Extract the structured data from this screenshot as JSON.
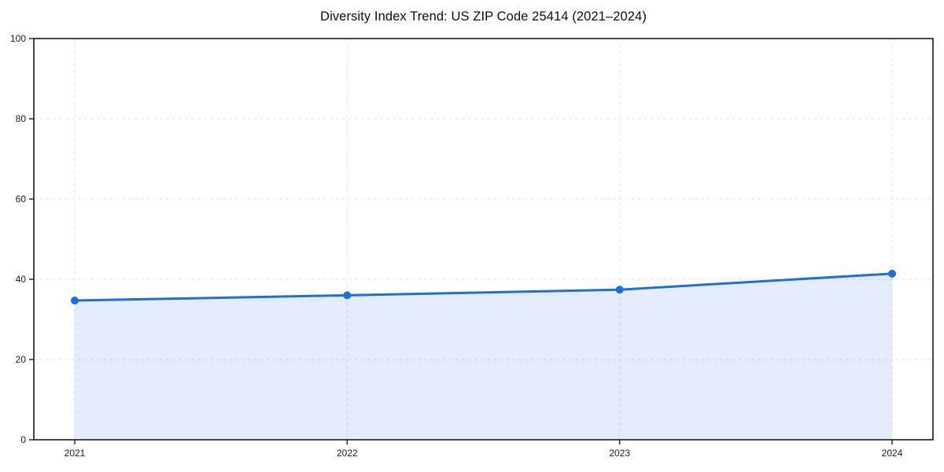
{
  "page": {
    "background_color": "#ffffff"
  },
  "chart_data": {
    "type": "area",
    "title": "Diversity Index Trend: US ZIP Code 25414 (2021–2024)",
    "x": [
      "2021",
      "2022",
      "2023",
      "2024"
    ],
    "series": [
      {
        "name": "Diversity Index",
        "values": [
          34.7,
          36.0,
          37.4,
          41.4
        ]
      }
    ],
    "xlabel": "",
    "ylabel": "",
    "ylim": [
      0,
      100
    ],
    "yticks": [
      0,
      20,
      40,
      60,
      80,
      100
    ],
    "grid": "dashed-both-axes",
    "legend": "none",
    "plot_border": "full-box",
    "line_color": "#1f6fd8",
    "marker_color": "#1f6fd8",
    "fill_color": "rgba(31, 111, 216, 0.13)",
    "axis_color": "#1a1a1a",
    "grid_color": "#e3e3e3",
    "tick_label_color": "#1a1a1a",
    "title_color": "#0d0d0d"
  }
}
